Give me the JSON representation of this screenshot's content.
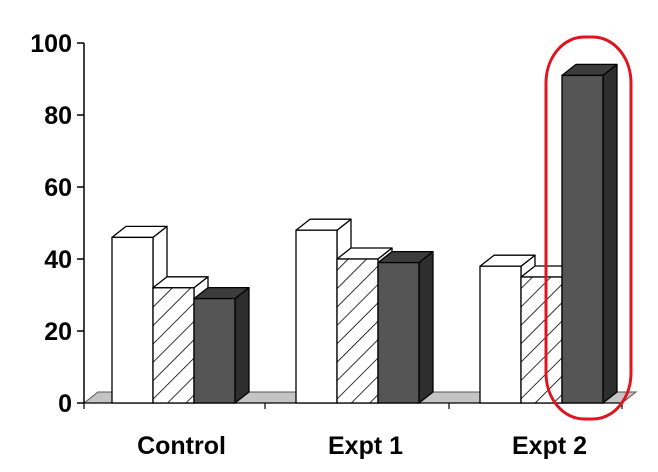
{
  "chart_data": {
    "type": "bar",
    "style": "3d-clustered",
    "categories": [
      "Control",
      "Expt 1",
      "Expt 2"
    ],
    "series": [
      {
        "fill": "white",
        "values": [
          46,
          48,
          38
        ]
      },
      {
        "fill": "hatched",
        "values": [
          32,
          40,
          35
        ]
      },
      {
        "fill": "#555555",
        "values": [
          29,
          39,
          91
        ]
      }
    ],
    "ylim": [
      0,
      100
    ],
    "yticks": [
      "0",
      "20",
      "40",
      "60",
      "80",
      "100"
    ],
    "xlabel": "",
    "ylabel": "",
    "title": "",
    "grid": false,
    "legend": "none",
    "highlight": {
      "category": "Expt 2",
      "series": 2,
      "color": "#e0141e"
    },
    "colors": {
      "bar_edge": "#000000",
      "dark_bar": "#555555",
      "dark_bar_top": "#3c3c3c",
      "dark_bar_side": "#2e2e2e",
      "floor": "#c4c4c4",
      "highlight": "#e0141e"
    }
  }
}
